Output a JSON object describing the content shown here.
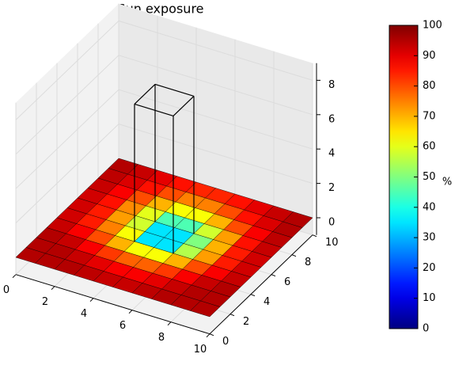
{
  "chart_data": {
    "type": "surface3d",
    "title": "Sun exposure",
    "x": [
      0,
      1,
      2,
      3,
      4,
      5,
      6,
      7,
      8,
      9,
      10
    ],
    "y": [
      0,
      1,
      2,
      3,
      4,
      5,
      6,
      7,
      8,
      9,
      10
    ],
    "values": [
      [
        95,
        95,
        95,
        94,
        93,
        93,
        94,
        95,
        95,
        95
      ],
      [
        95,
        95,
        93,
        90,
        88,
        88,
        90,
        93,
        95,
        95
      ],
      [
        95,
        93,
        88,
        82,
        78,
        78,
        82,
        88,
        93,
        95
      ],
      [
        93,
        88,
        80,
        70,
        62,
        62,
        70,
        80,
        88,
        93
      ],
      [
        92,
        85,
        75,
        62,
        35,
        35,
        55,
        72,
        85,
        92
      ],
      [
        92,
        85,
        72,
        58,
        35,
        35,
        50,
        70,
        85,
        92
      ],
      [
        92,
        86,
        74,
        60,
        45,
        45,
        58,
        72,
        86,
        93
      ],
      [
        93,
        88,
        80,
        70,
        62,
        62,
        70,
        80,
        88,
        94
      ],
      [
        94,
        91,
        86,
        80,
        75,
        75,
        80,
        86,
        91,
        95
      ],
      [
        95,
        93,
        90,
        86,
        84,
        84,
        86,
        90,
        93,
        95
      ]
    ],
    "building": {
      "x": [
        4,
        6
      ],
      "y": [
        4,
        6
      ],
      "z": [
        0,
        8
      ]
    },
    "xlim": [
      0,
      10
    ],
    "ylim": [
      0,
      10
    ],
    "zlim": [
      -1,
      9
    ],
    "xticks": [
      0,
      2,
      4,
      6,
      8,
      10
    ],
    "yticks": [
      0,
      2,
      4,
      6,
      8,
      10
    ],
    "zticks": [
      0,
      2,
      4,
      6,
      8
    ],
    "grid": true,
    "colormap": "jet",
    "colorbar": {
      "label": "%",
      "lim": [
        0,
        100
      ],
      "ticks": [
        0,
        10,
        20,
        30,
        40,
        50,
        60,
        70,
        80,
        90,
        100
      ]
    }
  }
}
